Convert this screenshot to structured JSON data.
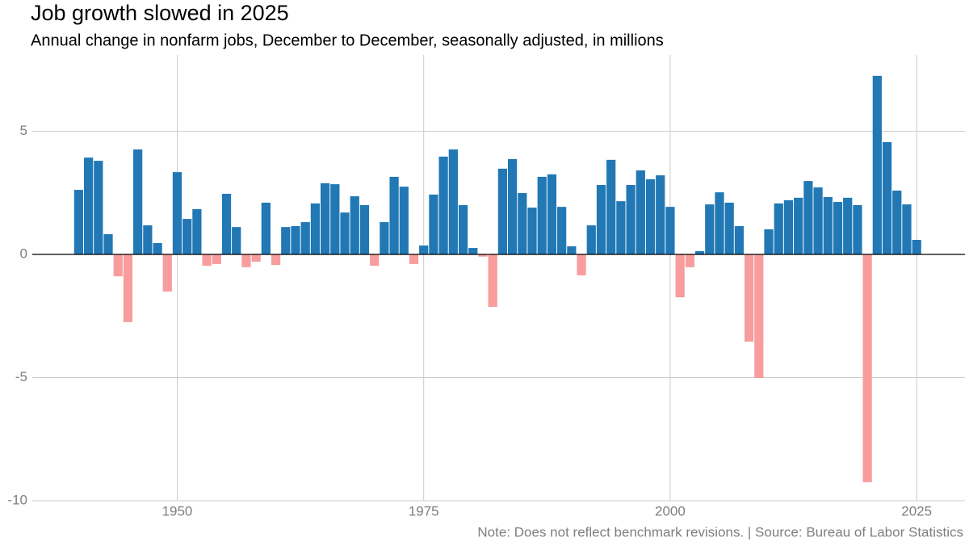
{
  "chart_data": {
    "type": "bar",
    "title": "Job growth slowed in 2025",
    "subtitle": "Annual change in nonfarm jobs, December to December, seasonally adjusted, in millions",
    "caption": "Note: Does not reflect benchmark revisions. | Source: Bureau of Labor Statistics",
    "x": [
      1940,
      1941,
      1942,
      1943,
      1944,
      1945,
      1946,
      1947,
      1948,
      1949,
      1950,
      1951,
      1952,
      1953,
      1954,
      1955,
      1956,
      1957,
      1958,
      1959,
      1960,
      1961,
      1962,
      1963,
      1964,
      1965,
      1966,
      1967,
      1968,
      1969,
      1970,
      1971,
      1972,
      1973,
      1974,
      1975,
      1976,
      1977,
      1978,
      1979,
      1980,
      1981,
      1982,
      1983,
      1984,
      1985,
      1986,
      1987,
      1988,
      1989,
      1990,
      1991,
      1992,
      1993,
      1994,
      1995,
      1996,
      1997,
      1998,
      1999,
      2000,
      2001,
      2002,
      2003,
      2004,
      2005,
      2006,
      2007,
      2008,
      2009,
      2010,
      2011,
      2012,
      2013,
      2014,
      2015,
      2016,
      2017,
      2018,
      2019,
      2020,
      2021,
      2022,
      2023,
      2024,
      2025
    ],
    "values": [
      2.62,
      3.93,
      3.8,
      0.82,
      -0.89,
      -2.75,
      4.26,
      1.18,
      0.46,
      -1.51,
      3.34,
      1.44,
      1.84,
      -0.46,
      -0.39,
      2.46,
      1.11,
      -0.52,
      -0.3,
      2.1,
      -0.43,
      1.11,
      1.15,
      1.31,
      2.07,
      2.89,
      2.85,
      1.7,
      2.36,
      2.0,
      -0.46,
      1.31,
      3.15,
      2.75,
      -0.39,
      0.36,
      2.43,
      3.97,
      4.26,
      2.0,
      0.26,
      -0.09,
      -2.13,
      3.48,
      3.87,
      2.49,
      1.9,
      3.15,
      3.25,
      1.93,
      0.33,
      -0.85,
      1.18,
      2.82,
      3.84,
      2.16,
      2.82,
      3.41,
      3.05,
      3.21,
      1.93,
      -1.74,
      -0.52,
      0.13,
      2.03,
      2.52,
      2.1,
      1.15,
      -3.54,
      -5.02,
      1.02,
      2.07,
      2.2,
      2.3,
      2.98,
      2.72,
      2.33,
      2.13,
      2.3,
      2.0,
      -9.25,
      7.25,
      4.56,
      2.59,
      2.03,
      0.59
    ],
    "positive_color": "#2178b5",
    "negative_color": "#f89d9d",
    "xlim": [
      1935.3,
      2029.9
    ],
    "xticks": [
      1950,
      1975,
      2000,
      2025
    ],
    "ylim": [
      -10,
      8
    ],
    "yticks": [
      -10,
      -5,
      0,
      5
    ],
    "grid": true
  }
}
